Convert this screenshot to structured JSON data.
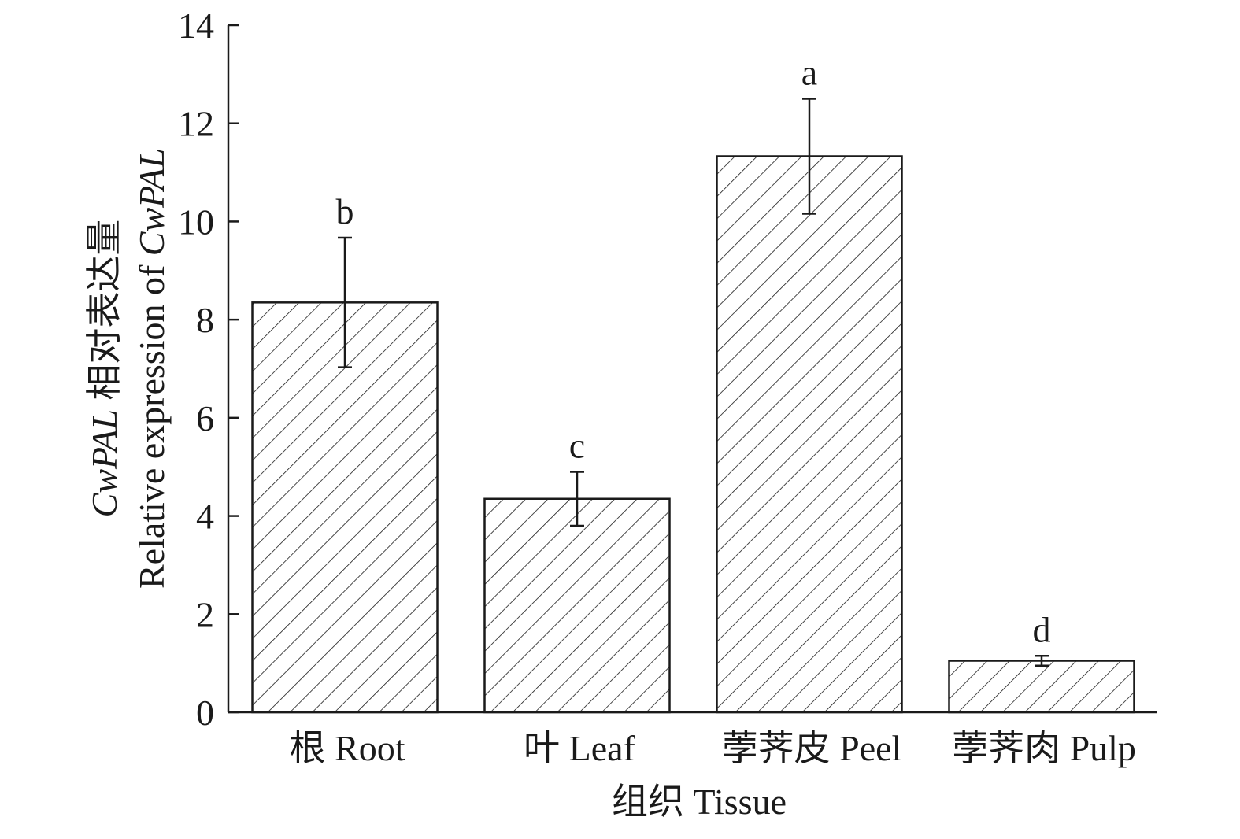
{
  "chart_data": {
    "type": "bar",
    "categories": [
      "根 Root",
      "叶 Leaf",
      "荸荠皮 Peel",
      "荸荠肉 Pulp"
    ],
    "values": [
      8.35,
      4.35,
      11.33,
      1.05
    ],
    "errors": [
      1.32,
      0.55,
      1.17,
      0.1
    ],
    "significance": [
      "b",
      "c",
      "a",
      "d"
    ],
    "xlabel": "组织 Tissue",
    "ylabel_line1_italic": "CwPAL",
    "ylabel_line1_text": " 相对表达量",
    "ylabel_line2_text": "Relative expression of ",
    "ylabel_line2_italic": "CwPAL",
    "ylim": [
      0,
      14
    ],
    "yticks": [
      0,
      2,
      4,
      6,
      8,
      10,
      12,
      14
    ],
    "bar_fill": "hatched-diagonal",
    "colors": {
      "stroke": "#1a1a1a",
      "background": "#ffffff"
    }
  }
}
